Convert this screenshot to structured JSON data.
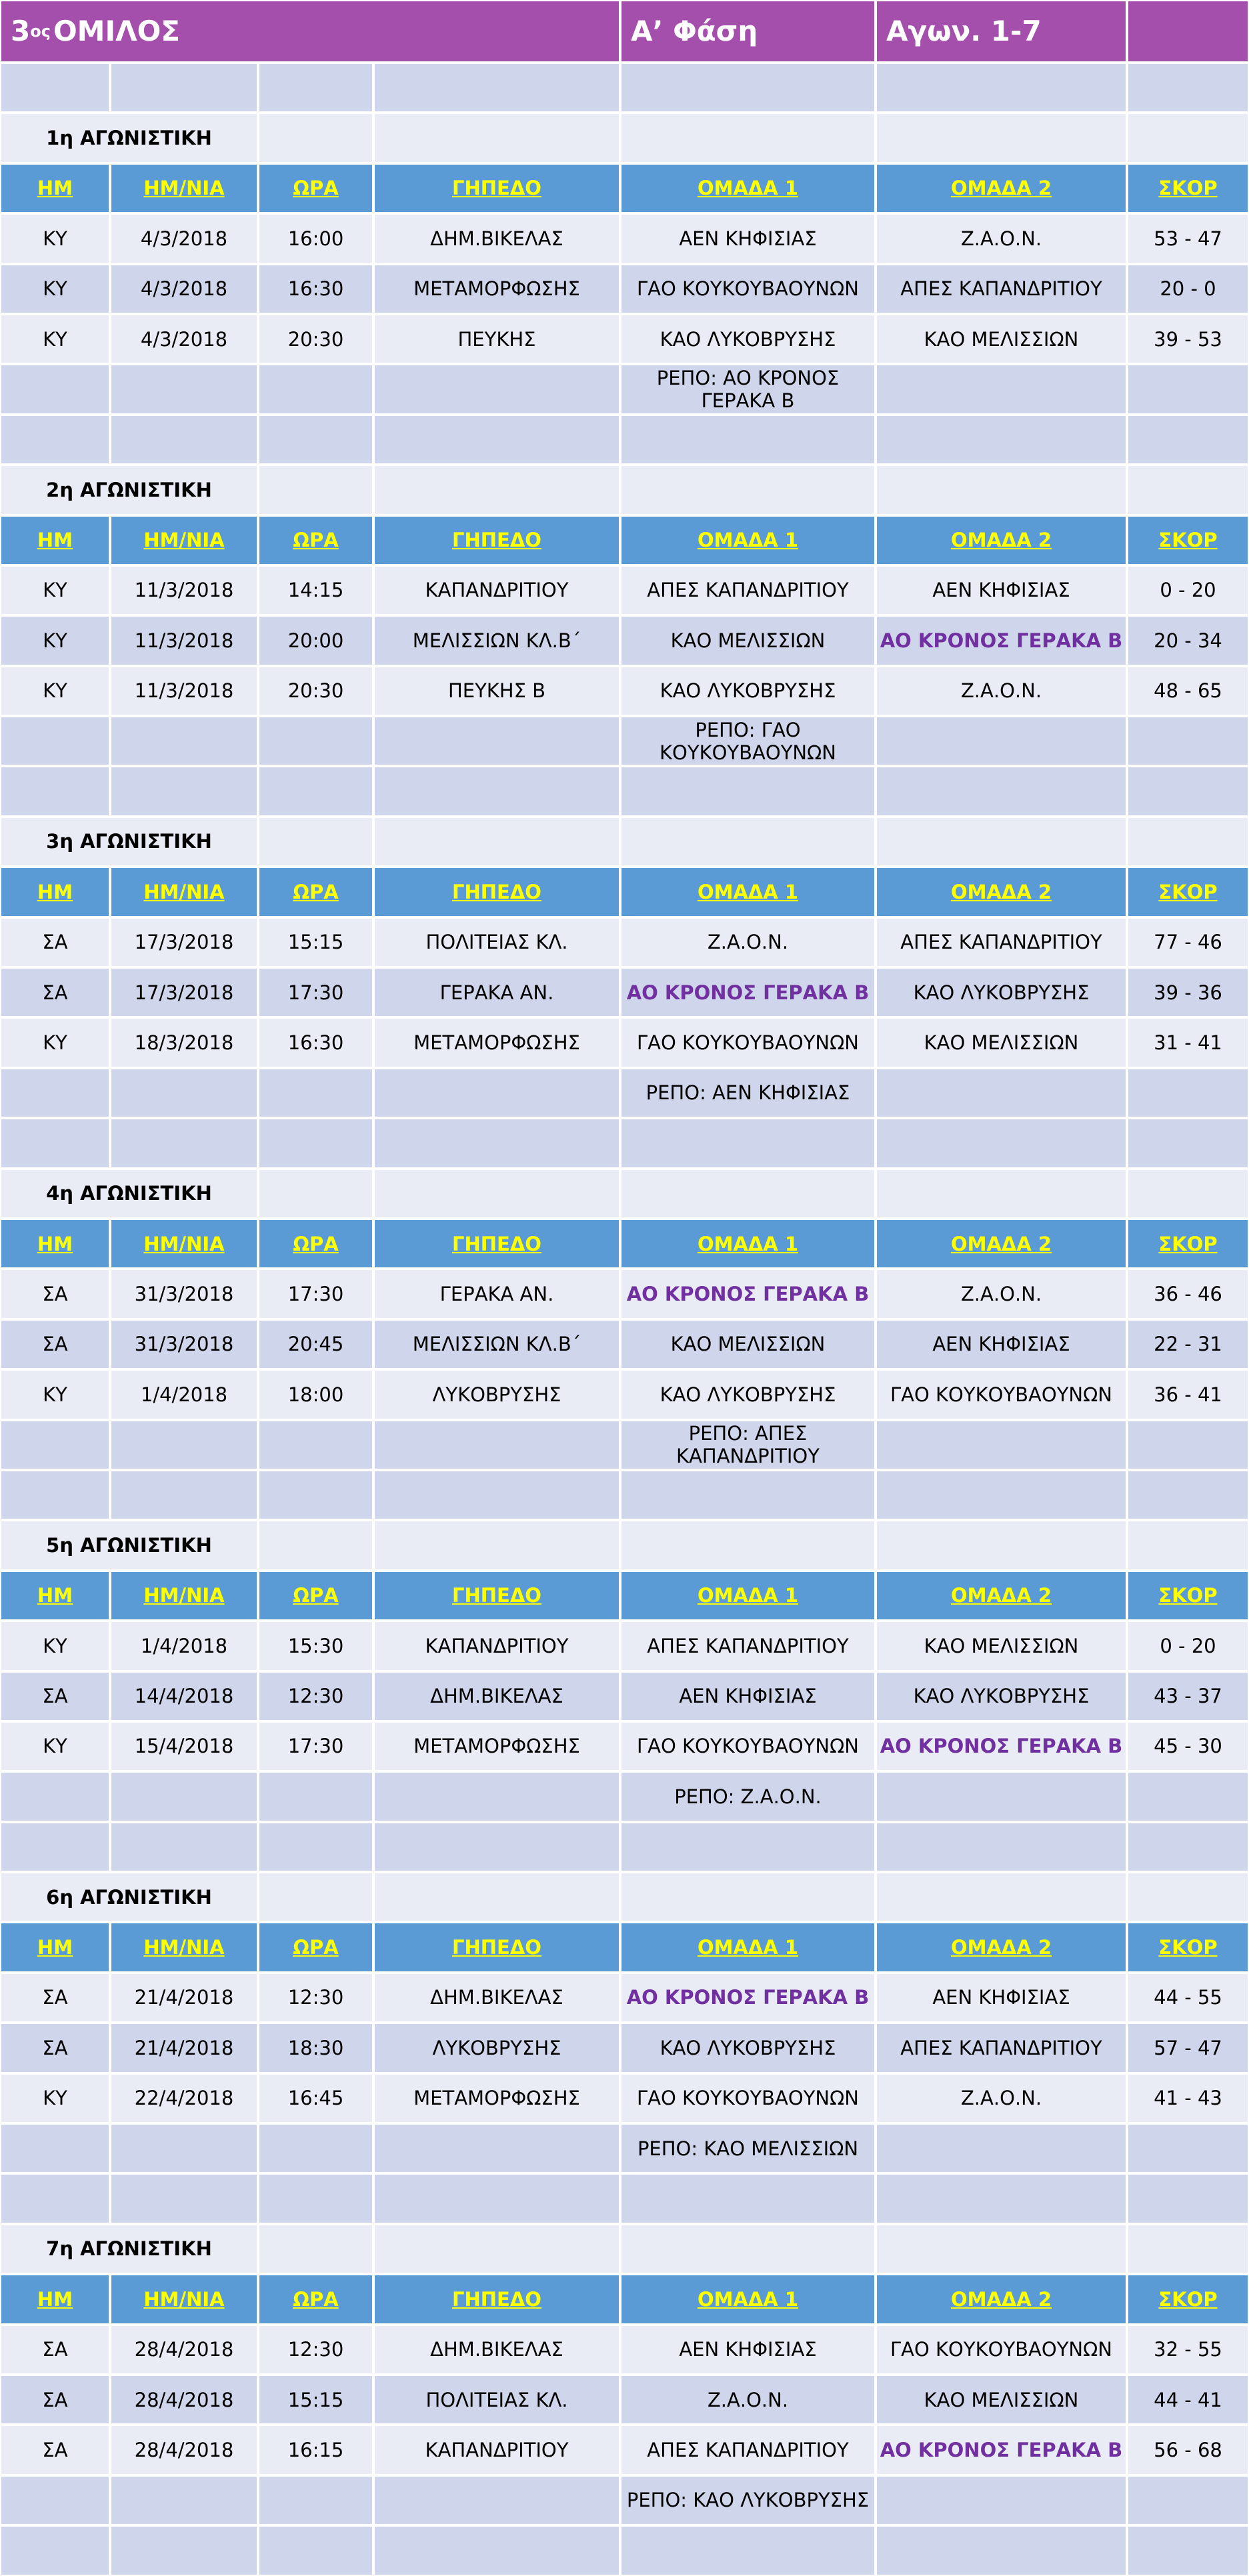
{
  "header": {
    "group_number": "3",
    "group_suffix": "ος",
    "group_word": "ΟΜΙΛΟΣ",
    "phase": "Α’ Φάση",
    "matchdays": "Αγων. 1-7"
  },
  "columns": [
    "ΗΜ",
    "ΗΜ/ΝΙΑ",
    "ΩΡΑ",
    "ΓΗΠΕΔΟ",
    "ΟΜΑΔΑ 1",
    "ΟΜΑΔΑ 2",
    "ΣΚΟΡ"
  ],
  "highlight": {
    "team": "ΑΟ ΚΡΟΝΟΣ ΓΕΡΑΚΑ Β",
    "color": "#7030a0"
  },
  "rounds": [
    {
      "label": "1η ΑΓΩΝΙΣΤΙΚΗ",
      "matches": [
        [
          "ΚΥ",
          "4/3/2018",
          "16:00",
          "ΔΗΜ.ΒΙΚΕΛΑΣ",
          "ΑΕΝ ΚΗΦΙΣΙΑΣ",
          "Ζ.Α.Ο.Ν.",
          "53 - 47"
        ],
        [
          "ΚΥ",
          "4/3/2018",
          "16:30",
          "ΜΕΤΑΜΟΡΦΩΣΗΣ",
          "ΓΑΟ ΚΟΥΚΟΥΒΑΟΥΝΩΝ",
          "ΑΠΕΣ ΚΑΠΑΝΔΡΙΤΙΟΥ",
          "20 - 0"
        ],
        [
          "ΚΥ",
          "4/3/2018",
          "20:30",
          "ΠΕΥΚΗΣ",
          "ΚΑΟ ΛΥΚΟΒΡΥΣΗΣ",
          "ΚΑΟ ΜΕΛΙΣΣΙΩΝ",
          "39 - 53"
        ]
      ],
      "repo": "ΡΕΠΟ: ΑΟ ΚΡΟΝΟΣ ΓΕΡΑΚΑ Β"
    },
    {
      "label": "2η ΑΓΩΝΙΣΤΙΚΗ",
      "matches": [
        [
          "ΚΥ",
          "11/3/2018",
          "14:15",
          "ΚΑΠΑΝΔΡΙΤΙΟΥ",
          "ΑΠΕΣ ΚΑΠΑΝΔΡΙΤΙΟΥ",
          "ΑΕΝ ΚΗΦΙΣΙΑΣ",
          "0 - 20"
        ],
        [
          "ΚΥ",
          "11/3/2018",
          "20:00",
          "ΜΕΛΙΣΣΙΩΝ ΚΛ.Β΄",
          "ΚΑΟ ΜΕΛΙΣΣΙΩΝ",
          "ΑΟ ΚΡΟΝΟΣ ΓΕΡΑΚΑ Β",
          "20 - 34"
        ],
        [
          "ΚΥ",
          "11/3/2018",
          "20:30",
          "ΠΕΥΚΗΣ Β",
          "ΚΑΟ ΛΥΚΟΒΡΥΣΗΣ",
          "Ζ.Α.Ο.Ν.",
          "48 - 65"
        ]
      ],
      "repo": "ΡΕΠΟ: ΓΑΟ ΚΟΥΚΟΥΒΑΟΥΝΩΝ"
    },
    {
      "label": "3η ΑΓΩΝΙΣΤΙΚΗ",
      "matches": [
        [
          "ΣΑ",
          "17/3/2018",
          "15:15",
          "ΠΟΛΙΤΕΙΑΣ ΚΛ.",
          "Ζ.Α.Ο.Ν.",
          "ΑΠΕΣ ΚΑΠΑΝΔΡΙΤΙΟΥ",
          "77 - 46"
        ],
        [
          "ΣΑ",
          "17/3/2018",
          "17:30",
          "ΓΕΡΑΚΑ ΑΝ.",
          "ΑΟ ΚΡΟΝΟΣ ΓΕΡΑΚΑ Β",
          "ΚΑΟ ΛΥΚΟΒΡΥΣΗΣ",
          "39 - 36"
        ],
        [
          "ΚΥ",
          "18/3/2018",
          "16:30",
          "ΜΕΤΑΜΟΡΦΩΣΗΣ",
          "ΓΑΟ ΚΟΥΚΟΥΒΑΟΥΝΩΝ",
          "ΚΑΟ ΜΕΛΙΣΣΙΩΝ",
          "31 - 41"
        ]
      ],
      "repo": "ΡΕΠΟ: ΑΕΝ ΚΗΦΙΣΙΑΣ"
    },
    {
      "label": "4η ΑΓΩΝΙΣΤΙΚΗ",
      "matches": [
        [
          "ΣΑ",
          "31/3/2018",
          "17:30",
          "ΓΕΡΑΚΑ ΑΝ.",
          "ΑΟ ΚΡΟΝΟΣ ΓΕΡΑΚΑ Β",
          "Ζ.Α.Ο.Ν.",
          "36 - 46"
        ],
        [
          "ΣΑ",
          "31/3/2018",
          "20:45",
          "ΜΕΛΙΣΣΙΩΝ ΚΛ.Β΄",
          "ΚΑΟ ΜΕΛΙΣΣΙΩΝ",
          "ΑΕΝ ΚΗΦΙΣΙΑΣ",
          "22 - 31"
        ],
        [
          "ΚΥ",
          "1/4/2018",
          "18:00",
          "ΛΥΚΟΒΡΥΣΗΣ",
          "ΚΑΟ ΛΥΚΟΒΡΥΣΗΣ",
          "ΓΑΟ ΚΟΥΚΟΥΒΑΟΥΝΩΝ",
          "36 - 41"
        ]
      ],
      "repo": "ΡΕΠΟ: ΑΠΕΣ ΚΑΠΑΝΔΡΙΤΙΟΥ"
    },
    {
      "label": "5η ΑΓΩΝΙΣΤΙΚΗ",
      "matches": [
        [
          "ΚΥ",
          "1/4/2018",
          "15:30",
          "ΚΑΠΑΝΔΡΙΤΙΟΥ",
          "ΑΠΕΣ ΚΑΠΑΝΔΡΙΤΙΟΥ",
          "ΚΑΟ ΜΕΛΙΣΣΙΩΝ",
          "0 - 20"
        ],
        [
          "ΣΑ",
          "14/4/2018",
          "12:30",
          "ΔΗΜ.ΒΙΚΕΛΑΣ",
          "ΑΕΝ ΚΗΦΙΣΙΑΣ",
          "ΚΑΟ ΛΥΚΟΒΡΥΣΗΣ",
          "43 - 37"
        ],
        [
          "ΚΥ",
          "15/4/2018",
          "17:30",
          "ΜΕΤΑΜΟΡΦΩΣΗΣ",
          "ΓΑΟ ΚΟΥΚΟΥΒΑΟΥΝΩΝ",
          "ΑΟ ΚΡΟΝΟΣ ΓΕΡΑΚΑ Β",
          "45 - 30"
        ]
      ],
      "repo": "ΡΕΠΟ: Ζ.Α.Ο.Ν."
    },
    {
      "label": "6η ΑΓΩΝΙΣΤΙΚΗ",
      "matches": [
        [
          "ΣΑ",
          "21/4/2018",
          "12:30",
          "ΔΗΜ.ΒΙΚΕΛΑΣ",
          "ΑΟ ΚΡΟΝΟΣ ΓΕΡΑΚΑ Β",
          "ΑΕΝ ΚΗΦΙΣΙΑΣ",
          "44 - 55"
        ],
        [
          "ΣΑ",
          "21/4/2018",
          "18:30",
          "ΛΥΚΟΒΡΥΣΗΣ",
          "ΚΑΟ ΛΥΚΟΒΡΥΣΗΣ",
          "ΑΠΕΣ ΚΑΠΑΝΔΡΙΤΙΟΥ",
          "57 - 47"
        ],
        [
          "ΚΥ",
          "22/4/2018",
          "16:45",
          "ΜΕΤΑΜΟΡΦΩΣΗΣ",
          "ΓΑΟ ΚΟΥΚΟΥΒΑΟΥΝΩΝ",
          "Ζ.Α.Ο.Ν.",
          "41 - 43"
        ]
      ],
      "repo": "ΡΕΠΟ: ΚΑΟ ΜΕΛΙΣΣΙΩΝ"
    },
    {
      "label": "7η ΑΓΩΝΙΣΤΙΚΗ",
      "matches": [
        [
          "ΣΑ",
          "28/4/2018",
          "12:30",
          "ΔΗΜ.ΒΙΚΕΛΑΣ",
          "ΑΕΝ ΚΗΦΙΣΙΑΣ",
          "ΓΑΟ ΚΟΥΚΟΥΒΑΟΥΝΩΝ",
          "32 - 55"
        ],
        [
          "ΣΑ",
          "28/4/2018",
          "15:15",
          "ΠΟΛΙΤΕΙΑΣ ΚΛ.",
          "Ζ.Α.Ο.Ν.",
          "ΚΑΟ ΜΕΛΙΣΣΙΩΝ",
          "44 - 41"
        ],
        [
          "ΣΑ",
          "28/4/2018",
          "16:15",
          "ΚΑΠΑΝΔΡΙΤΙΟΥ",
          "ΑΠΕΣ ΚΑΠΑΝΔΡΙΤΙΟΥ",
          "ΑΟ ΚΡΟΝΟΣ ΓΕΡΑΚΑ Β",
          "56 - 68"
        ]
      ],
      "repo": "ΡΕΠΟ: ΚΑΟ ΛΥΚΟΒΡΥΣΗΣ"
    }
  ]
}
